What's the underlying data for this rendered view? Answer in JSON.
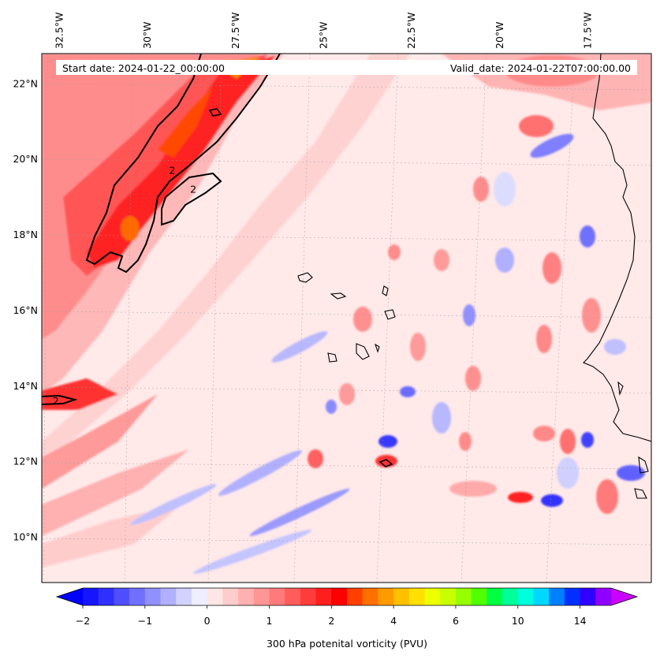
{
  "map": {
    "info": {
      "start_date": "Start date: 2024-01-22_00:00:00",
      "valid_date": "Valid_date: 2024-01-22T07:00:00.00"
    },
    "extent": {
      "lon_min": -33.0,
      "lon_max": -15.7,
      "lat_min": 8.8,
      "lat_max": 22.8
    },
    "lon_ticks": [
      {
        "value": -32.5,
        "label": "32.5°W"
      },
      {
        "value": -30.0,
        "label": "30°W"
      },
      {
        "value": -27.5,
        "label": "27.5°W"
      },
      {
        "value": -25.0,
        "label": "25°W"
      },
      {
        "value": -22.5,
        "label": "22.5°W"
      },
      {
        "value": -20.0,
        "label": "20°W"
      },
      {
        "value": -17.5,
        "label": "17.5°W"
      }
    ],
    "lat_ticks": [
      {
        "value": 22,
        "label": "22°N"
      },
      {
        "value": 20,
        "label": "20°N"
      },
      {
        "value": 18,
        "label": "18°N"
      },
      {
        "value": 16,
        "label": "16°N"
      },
      {
        "value": 14,
        "label": "14°N"
      },
      {
        "value": 12,
        "label": "12°N"
      },
      {
        "value": 10,
        "label": "10°N"
      }
    ],
    "contour_labels": [
      {
        "lon": -29.3,
        "lat": 19.7,
        "text": "2"
      },
      {
        "lon": -28.7,
        "lat": 19.2,
        "text": "2"
      },
      {
        "lon": -32.6,
        "lat": 13.6,
        "text": "2"
      }
    ]
  },
  "colorbar": {
    "title": "300 hPa potenital vorticity (PVU)",
    "ticks": [
      {
        "value": -2,
        "label": "−2"
      },
      {
        "value": -1,
        "label": "−1"
      },
      {
        "value": 0,
        "label": "0"
      },
      {
        "value": 1,
        "label": "1"
      },
      {
        "value": 2,
        "label": "2"
      },
      {
        "value": 4,
        "label": "4"
      },
      {
        "value": 6,
        "label": "6"
      },
      {
        "value": 10,
        "label": "10"
      },
      {
        "value": 14,
        "label": "14"
      }
    ],
    "under_color": "#0000ff",
    "over_color": "#cc00ff",
    "colors": [
      "#1515ff",
      "#2f2fff",
      "#4f4fff",
      "#7070ff",
      "#9090ff",
      "#b0b0ff",
      "#d2d2ff",
      "#eeeeff",
      "#ffe6e6",
      "#ffcccc",
      "#ffb0b0",
      "#ff9696",
      "#ff7a7a",
      "#ff5c5c",
      "#ff3c3c",
      "#ff1e1e",
      "#ff0000",
      "#ff4000",
      "#ff7000",
      "#ff9a00",
      "#ffc000",
      "#ffe000",
      "#eeff00",
      "#c8ff00",
      "#96ff00",
      "#50ff00",
      "#00ff40",
      "#00ff99",
      "#00ffdd",
      "#00d8ff",
      "#0080ff",
      "#0030ff",
      "#3000ff",
      "#9000ff"
    ]
  }
}
